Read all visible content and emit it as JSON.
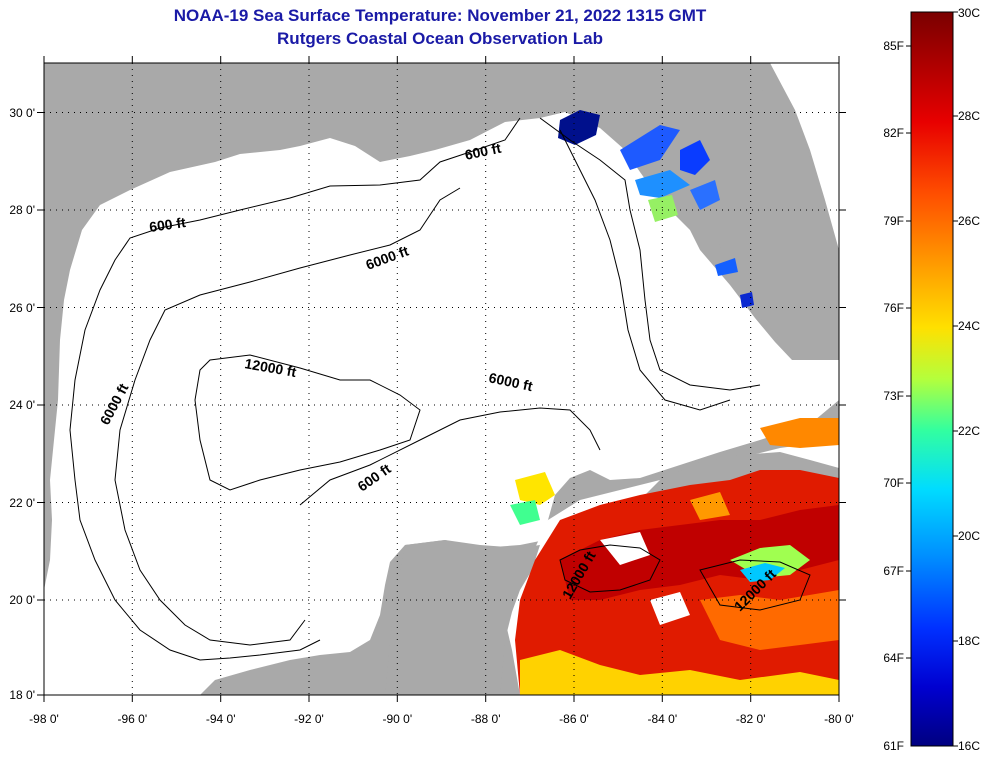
{
  "title": "NOAA-19 Sea Surface Temperature:  November 21, 2022 1315 GMT",
  "subtitle": "Rutgers Coastal Ocean Observation Lab",
  "map": {
    "lon_range": [
      -98,
      -80
    ],
    "lat_range": [
      18,
      31
    ],
    "x_ticks": [
      "-98 0'",
      "-96 0'",
      "-94 0'",
      "-92 0'",
      "-90 0'",
      "-88 0'",
      "-86 0'",
      "-84 0'",
      "-82 0'",
      "-80 0'"
    ],
    "y_ticks": [
      "30 0'",
      "28 0'",
      "26 0'",
      "24 0'",
      "22 0'",
      "20 0'",
      "18 0'"
    ],
    "gridlines": "dotted",
    "land_color": "#a9a9a9",
    "water_color": "#ffffff",
    "contour_labels": [
      {
        "text": "600 ft"
      },
      {
        "text": "600 ft"
      },
      {
        "text": "600 ft"
      },
      {
        "text": "6000 ft"
      },
      {
        "text": "6000 ft"
      },
      {
        "text": "6000 ft"
      },
      {
        "text": "12000 ft"
      },
      {
        "text": "12000 ft"
      },
      {
        "text": "12000 ft"
      }
    ]
  },
  "colorbar": {
    "fahrenheit_labels": [
      "85F",
      "82F",
      "79F",
      "76F",
      "73F",
      "70F",
      "67F",
      "64F",
      "61F"
    ],
    "celsius_labels": [
      "30C",
      "28C",
      "26C",
      "24C",
      "22C",
      "20C",
      "18C",
      "16C"
    ],
    "range_c": [
      16,
      30
    ],
    "colors": [
      "#800000",
      "#d00000",
      "#ff3000",
      "#ff8c00",
      "#ffd700",
      "#c8ff32",
      "#32ff9a",
      "#00e5ff",
      "#0096ff",
      "#0032ff",
      "#0000c0",
      "#00008c"
    ]
  }
}
